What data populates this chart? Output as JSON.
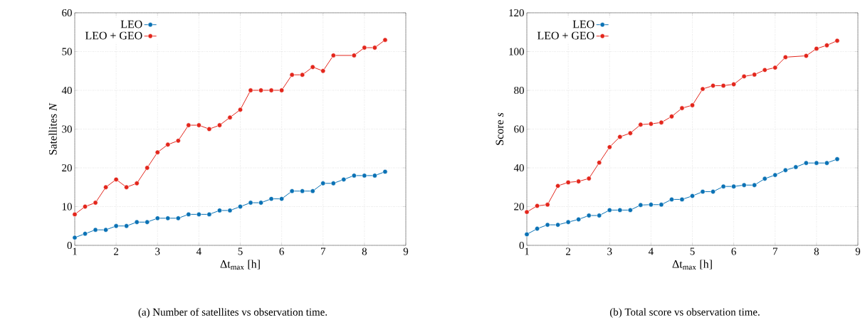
{
  "chart_data": [
    {
      "type": "line",
      "xlabel": "Δt$_{max}$ [h]",
      "ylabel": "Satellites *N*",
      "annotations": [
        "(a) Number of satellites vs observation time."
      ],
      "x": [
        1,
        1.25,
        1.5,
        1.75,
        2,
        2.25,
        2.5,
        2.75,
        3,
        3.25,
        3.5,
        3.75,
        4,
        4.25,
        4.5,
        4.75,
        5,
        5.25,
        5.5,
        5.75,
        6,
        6.25,
        6.5,
        6.75,
        7,
        7.25,
        7.5,
        7.75,
        8,
        8.25,
        8.5
      ],
      "xlim": [
        1,
        9
      ],
      "xticks": [
        1,
        2,
        3,
        4,
        5,
        6,
        7,
        8,
        9
      ],
      "ylim": [
        0,
        60
      ],
      "yticks": [
        0,
        10,
        20,
        30,
        40,
        50,
        60
      ],
      "grid": true,
      "legend": "top left",
      "marker": "circle",
      "line_style": "solid",
      "series": [
        {
          "name": "LEO",
          "color": "#0b72b5",
          "values": [
            2,
            3,
            4,
            4,
            5,
            5,
            6,
            6,
            7,
            7,
            7,
            8,
            8,
            8,
            9,
            9,
            10,
            11,
            11,
            12,
            12,
            14,
            14,
            14,
            16,
            16,
            17,
            18,
            18,
            18,
            19
          ]
        },
        {
          "name": "LEO + GEO",
          "color": "#e3261c",
          "x": [
            1,
            1.25,
            1.5,
            1.75,
            2,
            2.25,
            2.5,
            2.75,
            3,
            3.25,
            3.5,
            3.75,
            4,
            4.25,
            4.5,
            4.75,
            5,
            5.25,
            5.5,
            5.75,
            6,
            6.25,
            6.5,
            6.75,
            7,
            7.25,
            7.75,
            8,
            8.25,
            8.5
          ],
          "values": [
            8,
            10,
            11,
            15,
            17,
            15,
            16,
            20,
            24,
            26,
            27,
            31,
            31,
            30,
            31,
            33,
            35,
            40,
            40,
            40,
            40,
            44,
            44,
            46,
            45,
            49,
            49,
            51,
            51,
            53
          ]
        }
      ]
    },
    {
      "type": "line",
      "xlabel": "Δt$_{max}$ [h]",
      "ylabel": "Score *s*",
      "annotations": [
        "(b) Total score vs observation time."
      ],
      "x": [
        1,
        1.25,
        1.5,
        1.75,
        2,
        2.25,
        2.5,
        2.75,
        3,
        3.25,
        3.5,
        3.75,
        4,
        4.25,
        4.5,
        4.75,
        5,
        5.25,
        5.5,
        5.75,
        6,
        6.25,
        6.5,
        6.75,
        7,
        7.25,
        7.5,
        7.75,
        8,
        8.25,
        8.5
      ],
      "xlim": [
        1,
        9
      ],
      "xticks": [
        1,
        2,
        3,
        4,
        5,
        6,
        7,
        8,
        9
      ],
      "ylim": [
        0,
        120
      ],
      "yticks": [
        0,
        20,
        40,
        60,
        80,
        100,
        120
      ],
      "grid": true,
      "legend": "top left",
      "marker": "circle",
      "line_style": "solid",
      "series": [
        {
          "name": "LEO",
          "color": "#0b72b5",
          "values": [
            5.7,
            8.6,
            10.6,
            10.6,
            12.0,
            13.4,
            15.4,
            15.4,
            18.2,
            18.2,
            18.2,
            20.8,
            21.0,
            21.0,
            23.7,
            23.7,
            25.5,
            27.7,
            27.7,
            30.4,
            30.4,
            31.1,
            31.1,
            34.4,
            36.3,
            38.8,
            40.4,
            42.5,
            42.5,
            42.5,
            44.5
          ]
        },
        {
          "name": "LEO + GEO",
          "color": "#e3261c",
          "x": [
            1,
            1.25,
            1.5,
            1.75,
            2,
            2.25,
            2.5,
            2.75,
            3,
            3.25,
            3.5,
            3.75,
            4,
            4.25,
            4.5,
            4.75,
            5,
            5.25,
            5.5,
            5.75,
            6,
            6.25,
            6.5,
            6.75,
            7,
            7.25,
            7.75,
            8,
            8.25,
            8.5
          ],
          "values": [
            17.2,
            20.4,
            21.0,
            30.7,
            32.5,
            33.0,
            34.5,
            42.7,
            50.7,
            56.0,
            57.9,
            62.3,
            62.7,
            63.4,
            66.5,
            70.8,
            72.3,
            80.7,
            82.4,
            82.4,
            83.1,
            87.2,
            88.1,
            90.5,
            91.7,
            97.1,
            97.8,
            101.5,
            103.2,
            105.6
          ]
        }
      ]
    }
  ]
}
